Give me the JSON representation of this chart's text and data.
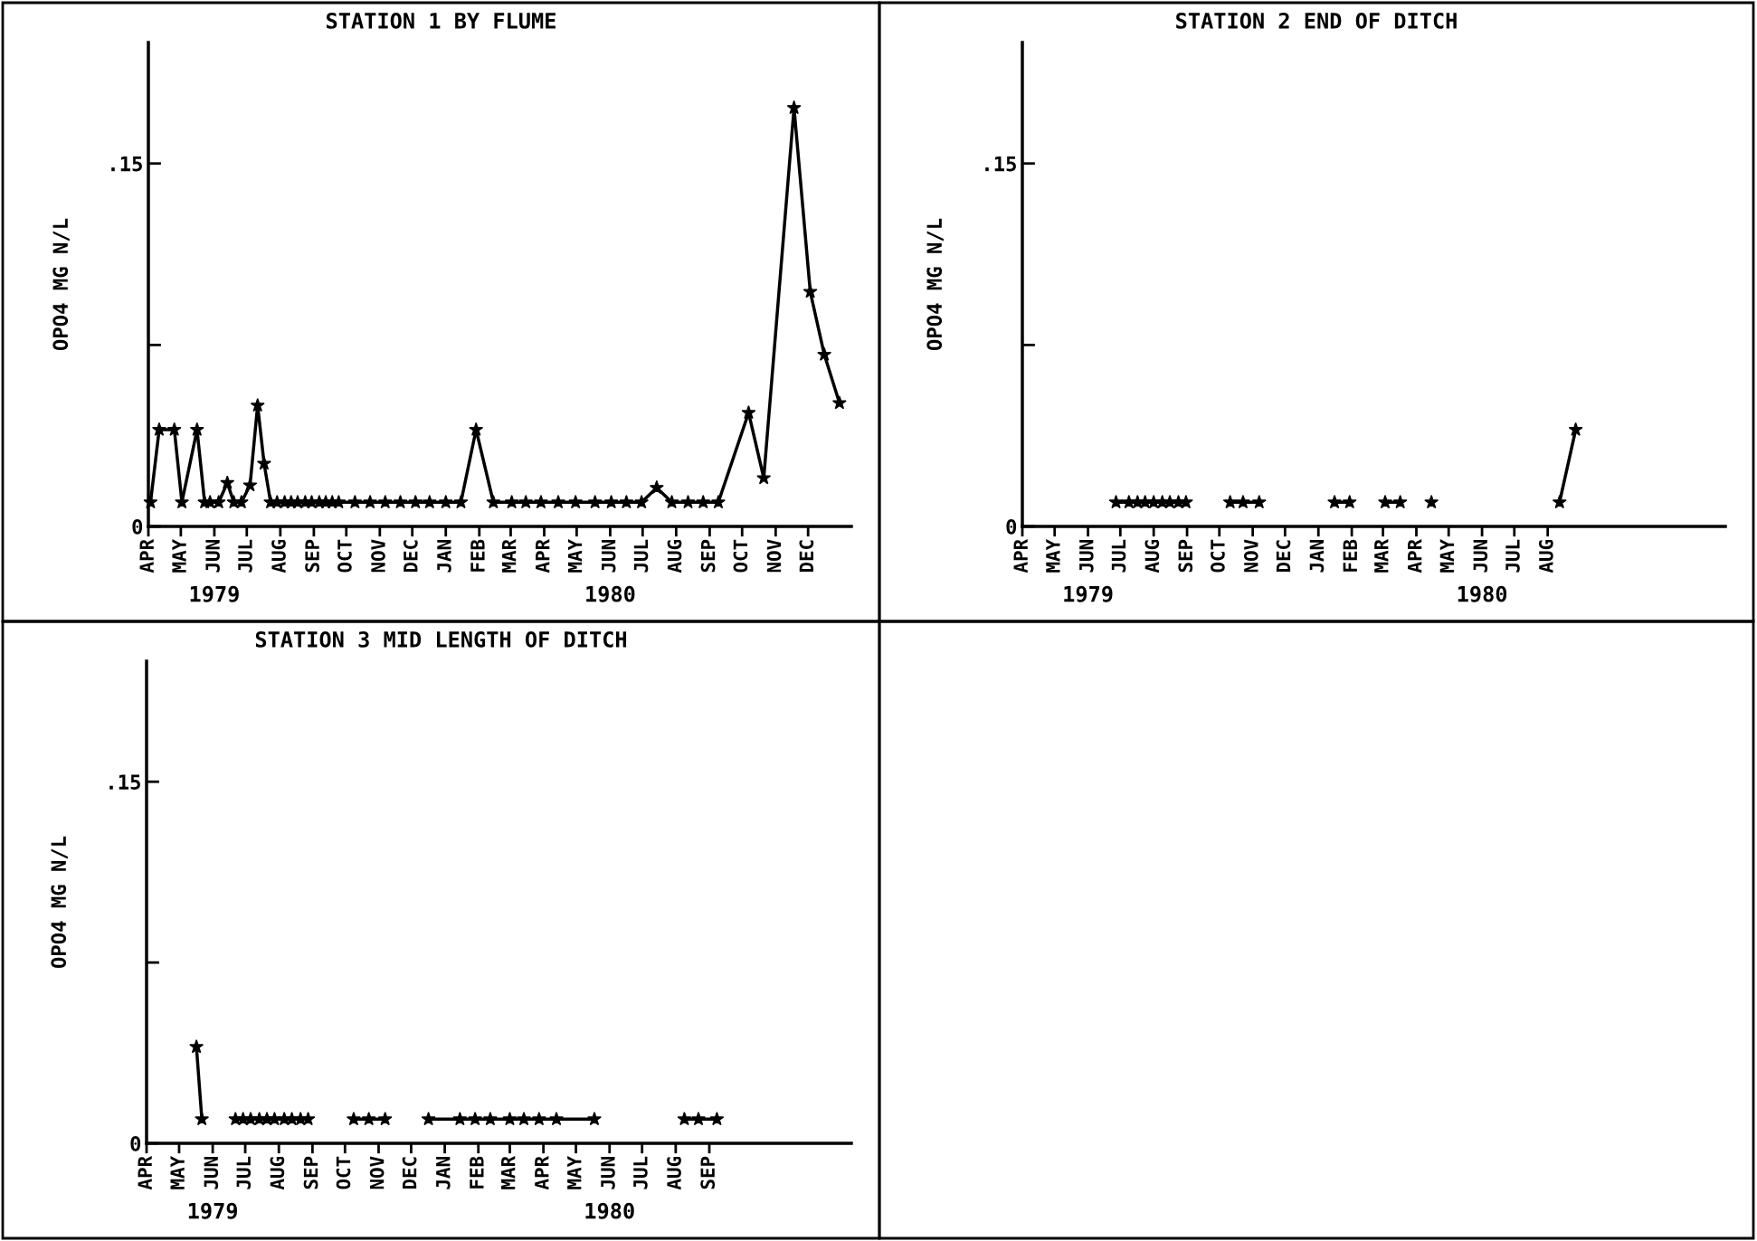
{
  "chart_data": [
    {
      "type": "line",
      "title": "STATION 1 BY FLUME",
      "ylabel": "OPO4 MG N/L",
      "marker": "star",
      "line_style": "solid",
      "xlim": [
        "1979-04-01",
        "1981-01-10"
      ],
      "ylim": [
        0,
        0.2
      ],
      "xticks": [
        {
          "value": "1979-04",
          "label": "APR"
        },
        {
          "value": "1979-05",
          "label": "MAY"
        },
        {
          "value": "1979-06",
          "label": "JUN"
        },
        {
          "value": "1979-07",
          "label": "JUL"
        },
        {
          "value": "1979-08",
          "label": "AUG"
        },
        {
          "value": "1979-09",
          "label": "SEP"
        },
        {
          "value": "1979-10",
          "label": "OCT"
        },
        {
          "value": "1979-11",
          "label": "NOV"
        },
        {
          "value": "1979-12",
          "label": "DEC"
        },
        {
          "value": "1980-01",
          "label": "JAN"
        },
        {
          "value": "1980-02",
          "label": "FEB"
        },
        {
          "value": "1980-03",
          "label": "MAR"
        },
        {
          "value": "1980-04",
          "label": "APR"
        },
        {
          "value": "1980-05",
          "label": "MAY"
        },
        {
          "value": "1980-06",
          "label": "JUN"
        },
        {
          "value": "1980-07",
          "label": "JUL"
        },
        {
          "value": "1980-08",
          "label": "AUG"
        },
        {
          "value": "1980-09",
          "label": "SEP"
        },
        {
          "value": "1980-10",
          "label": "OCT"
        },
        {
          "value": "1980-11",
          "label": "NOV"
        },
        {
          "value": "1980-12",
          "label": "DEC"
        }
      ],
      "yticks": [
        {
          "value": 0,
          "label": "0"
        },
        {
          "value": 0.075,
          "label": null
        },
        {
          "value": 0.15,
          "label": ".15"
        }
      ],
      "annotations": [
        "1979",
        "1980"
      ],
      "series": [
        {
          "color": "#000000",
          "x": [
            "1979-04-03",
            "1979-04-11",
            "1979-04-25",
            "1979-05-02",
            "1979-05-16",
            "1979-05-23",
            "1979-05-28",
            "1979-06-05",
            "1979-06-13",
            "1979-06-19",
            "1979-06-26",
            "1979-07-04",
            "1979-07-11",
            "1979-07-17",
            "1979-07-23",
            "1979-07-29",
            "1979-08-05",
            "1979-08-11",
            "1979-08-17",
            "1979-08-24",
            "1979-08-30",
            "1979-09-06",
            "1979-09-12",
            "1979-09-18",
            "1979-09-24",
            "1979-10-09",
            "1979-10-23",
            "1979-11-06",
            "1979-11-20",
            "1979-12-04",
            "1979-12-17",
            "1980-01-01",
            "1980-01-15",
            "1980-01-29",
            "1980-02-14",
            "1980-03-02",
            "1980-03-15",
            "1980-03-29",
            "1980-04-14",
            "1980-04-30",
            "1980-05-18",
            "1980-06-02",
            "1980-06-16",
            "1980-06-30",
            "1980-07-14",
            "1980-07-28",
            "1980-08-12",
            "1980-08-26",
            "1980-09-09",
            "1980-10-07",
            "1980-10-21",
            "1980-11-18",
            "1980-12-03",
            "1980-12-16",
            "1980-12-30"
          ],
          "values": [
            0.01,
            0.04,
            0.04,
            0.01,
            0.04,
            0.01,
            0.01,
            0.01,
            0.018,
            0.01,
            0.01,
            0.017,
            0.05,
            0.026,
            0.01,
            0.01,
            0.01,
            0.01,
            0.01,
            0.01,
            0.01,
            0.01,
            0.01,
            0.01,
            0.01,
            0.01,
            0.01,
            0.01,
            0.01,
            0.01,
            0.01,
            0.01,
            0.01,
            0.04,
            0.01,
            0.01,
            0.01,
            0.01,
            0.01,
            0.01,
            0.01,
            0.01,
            0.01,
            0.01,
            0.016,
            0.01,
            0.01,
            0.01,
            0.01,
            0.047,
            0.02,
            0.173,
            0.097,
            0.071,
            0.051
          ]
        }
      ]
    },
    {
      "type": "line",
      "title": "STATION 2 END OF DITCH",
      "ylabel": "OPO4 MG N/L",
      "marker": "star",
      "line_style": "solid",
      "xlim": [
        "1979-04-01",
        "1981-01-13"
      ],
      "ylim": [
        0,
        0.2
      ],
      "xticks": [
        {
          "value": "1979-04",
          "label": "APR"
        },
        {
          "value": "1979-05",
          "label": "MAY"
        },
        {
          "value": "1979-06",
          "label": "JUN"
        },
        {
          "value": "1979-07",
          "label": "JUL"
        },
        {
          "value": "1979-08",
          "label": "AUG"
        },
        {
          "value": "1979-09",
          "label": "SEP"
        },
        {
          "value": "1979-10",
          "label": "OCT"
        },
        {
          "value": "1979-11",
          "label": "NOV"
        },
        {
          "value": "1979-12",
          "label": "DEC"
        },
        {
          "value": "1980-01",
          "label": "JAN"
        },
        {
          "value": "1980-02",
          "label": "FEB"
        },
        {
          "value": "1980-03",
          "label": "MAR"
        },
        {
          "value": "1980-04",
          "label": "APR"
        },
        {
          "value": "1980-05",
          "label": "MAY"
        },
        {
          "value": "1980-06",
          "label": "JUN"
        },
        {
          "value": "1980-07",
          "label": "JUL"
        },
        {
          "value": "1980-08",
          "label": "AUG"
        }
      ],
      "yticks": [
        {
          "value": 0,
          "label": "0"
        },
        {
          "value": 0.075,
          "label": null
        },
        {
          "value": 0.15,
          "label": ".15"
        }
      ],
      "annotations": [
        "1979",
        "1980"
      ],
      "series": [
        {
          "color": "#000000",
          "x": [
            "1979-06-27",
            "1979-07-09",
            "1979-07-17",
            "1979-07-24",
            "1979-08-01",
            "1979-08-09",
            "1979-08-16",
            "1979-08-24",
            "1979-08-31",
            "1979-09-19",
            "1979-10-11",
            "1979-10-23",
            "1979-11-07",
            "1979-12-10",
            "1980-01-16",
            "1980-01-30",
            "1980-02-15",
            "1980-03-03",
            "1980-03-17",
            "1980-04-01",
            "1980-04-15",
            "1980-06-13",
            "1980-08-12",
            "1980-08-27"
          ],
          "values": [
            0.01,
            0.01,
            0.01,
            0.01,
            0.01,
            0.01,
            0.01,
            0.01,
            0.01,
            null,
            0.01,
            0.01,
            0.01,
            null,
            0.01,
            0.01,
            null,
            0.01,
            0.01,
            null,
            0.01,
            null,
            0.01,
            0.04
          ]
        }
      ]
    },
    {
      "type": "line",
      "title": "STATION 3 MID LENGTH OF DITCH",
      "ylabel": "OPO4 MG N/L",
      "marker": "star",
      "line_style": "solid",
      "xlim": [
        "1979-04-01",
        "1981-01-10"
      ],
      "ylim": [
        0,
        0.2
      ],
      "xticks": [
        {
          "value": "1979-04",
          "label": "APR"
        },
        {
          "value": "1979-05",
          "label": "MAY"
        },
        {
          "value": "1979-06",
          "label": "JUN"
        },
        {
          "value": "1979-07",
          "label": "JUL"
        },
        {
          "value": "1979-08",
          "label": "AUG"
        },
        {
          "value": "1979-09",
          "label": "SEP"
        },
        {
          "value": "1979-10",
          "label": "OCT"
        },
        {
          "value": "1979-11",
          "label": "NOV"
        },
        {
          "value": "1979-12",
          "label": "DEC"
        },
        {
          "value": "1980-01",
          "label": "JAN"
        },
        {
          "value": "1980-02",
          "label": "FEB"
        },
        {
          "value": "1980-03",
          "label": "MAR"
        },
        {
          "value": "1980-04",
          "label": "APR"
        },
        {
          "value": "1980-05",
          "label": "MAY"
        },
        {
          "value": "1980-06",
          "label": "JUN"
        },
        {
          "value": "1980-07",
          "label": "JUL"
        },
        {
          "value": "1980-08",
          "label": "AUG"
        },
        {
          "value": "1980-09",
          "label": "SEP"
        }
      ],
      "yticks": [
        {
          "value": 0,
          "label": "0"
        },
        {
          "value": 0.075,
          "label": null
        },
        {
          "value": 0.15,
          "label": ".15"
        }
      ],
      "annotations": [
        "1979",
        "1980"
      ],
      "series": [
        {
          "color": "#000000",
          "x": [
            "1979-05-17",
            "1979-05-22",
            "1979-06-07",
            "1979-06-22",
            "1979-06-29",
            "1979-07-06",
            "1979-07-14",
            "1979-07-21",
            "1979-07-28",
            "1979-08-06",
            "1979-08-13",
            "1979-08-21",
            "1979-08-28",
            "1979-09-19",
            "1979-10-09",
            "1979-10-23",
            "1979-11-07",
            "1979-11-28",
            "1979-12-17",
            "1980-01-15",
            "1980-01-29",
            "1980-02-12",
            "1980-03-01",
            "1980-03-14",
            "1980-03-28",
            "1980-04-13",
            "1980-05-18",
            "1980-07-01",
            "1980-08-09",
            "1980-08-22",
            "1980-09-08"
          ],
          "values": [
            0.04,
            0.01,
            null,
            0.01,
            0.01,
            0.01,
            0.01,
            0.01,
            0.01,
            0.01,
            0.01,
            0.01,
            0.01,
            null,
            0.01,
            0.01,
            0.01,
            null,
            0.01,
            0.01,
            0.01,
            0.01,
            0.01,
            0.01,
            0.01,
            0.01,
            0.01,
            null,
            0.01,
            0.01,
            0.01
          ]
        }
      ]
    }
  ]
}
